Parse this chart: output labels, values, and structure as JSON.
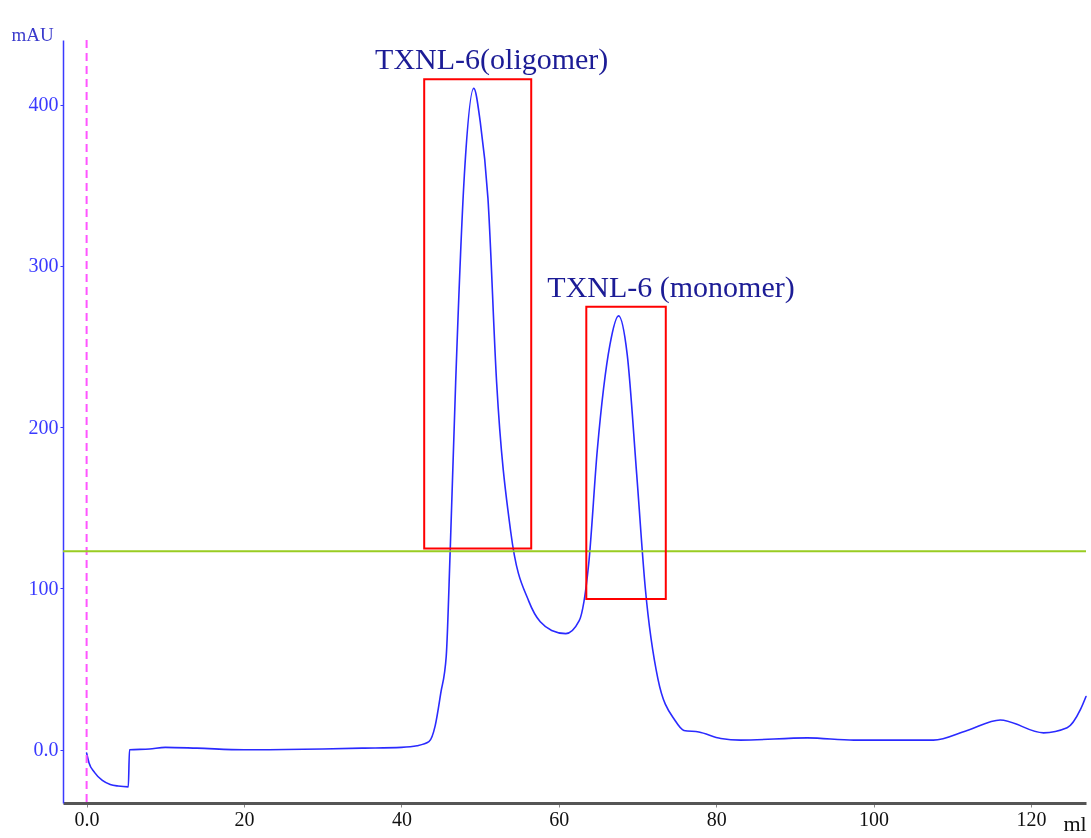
{
  "chart_data": {
    "type": "line",
    "xlabel": "ml",
    "ylabel": "mAU",
    "xlim": [
      -3,
      127
    ],
    "ylim": [
      -33,
      440
    ],
    "xticks": [
      {
        "value": 0,
        "label": "0.0"
      },
      20,
      40,
      60,
      80,
      100,
      120
    ],
    "yticks": [
      {
        "value": 0,
        "label": "0.0"
      },
      100,
      200,
      300,
      400
    ],
    "grid": false,
    "marker": "none",
    "line_style": "solid",
    "series": [
      {
        "color": "#2a2aff",
        "x": [
          0,
          0.3,
          1,
          2,
          3,
          4,
          5.3,
          5.45,
          8,
          10,
          14,
          20,
          30,
          35,
          40,
          42,
          43.5,
          44.3,
          45,
          45.7,
          46.2,
          46.9,
          48,
          49.2,
          50,
          51,
          52.1,
          53.9,
          56.2,
          59.1,
          60.9,
          62.6,
          63.8,
          64.9,
          66.5,
          67.6,
          68.7,
          69.9,
          71,
          72.6,
          74.8,
          75.9,
          77.8,
          80.6,
          83.1,
          91.6,
          97.5,
          107.6,
          111.9,
          116.1,
          121.6,
          124.6,
          126.3,
          127
        ],
        "values": [
          -2,
          -8,
          -14,
          -19,
          -21.5,
          -22.5,
          -23,
          0,
          0.5,
          1.5,
          1,
          0,
          0.5,
          1,
          1.5,
          2.5,
          5,
          15,
          35,
          58,
          123,
          228,
          356,
          410,
          390,
          342,
          228,
          135,
          92,
          74,
          72,
          80,
          115,
          186,
          251,
          269,
          245,
          171,
          100,
          44,
          18,
          12,
          11,
          7,
          6,
          7.4,
          6,
          6,
          12,
          18.5,
          10.5,
          13.6,
          25,
          33
        ]
      }
    ],
    "ref_lines": [
      {
        "axis": "x",
        "value": 0,
        "color": "#ff55ff",
        "line_style": "dashed"
      },
      {
        "axis": "y",
        "value": 123,
        "color": "#99cc22",
        "line_style": "solid"
      }
    ],
    "annotations": [
      {
        "text": "TXNL-6(oligomer)",
        "x": 49.2,
        "y": 410
      },
      {
        "text": "TXNL-6 (monomer)",
        "x": 67.6,
        "y": 269
      }
    ]
  }
}
